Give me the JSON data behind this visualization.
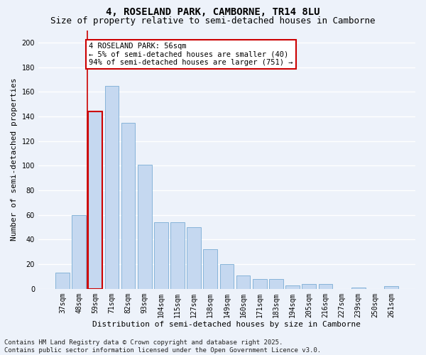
{
  "title1": "4, ROSELAND PARK, CAMBORNE, TR14 8LU",
  "title2": "Size of property relative to semi-detached houses in Camborne",
  "xlabel": "Distribution of semi-detached houses by size in Camborne",
  "ylabel": "Number of semi-detached properties",
  "categories": [
    "37sqm",
    "48sqm",
    "59sqm",
    "71sqm",
    "82sqm",
    "93sqm",
    "104sqm",
    "115sqm",
    "127sqm",
    "138sqm",
    "149sqm",
    "160sqm",
    "171sqm",
    "183sqm",
    "194sqm",
    "205sqm",
    "216sqm",
    "227sqm",
    "239sqm",
    "250sqm",
    "261sqm"
  ],
  "values": [
    13,
    60,
    144,
    165,
    135,
    101,
    54,
    54,
    50,
    32,
    20,
    11,
    8,
    8,
    3,
    4,
    4,
    0,
    1,
    0,
    2
  ],
  "bar_color": "#c5d8f0",
  "bar_edge_color": "#7aadd4",
  "highlight_bar_index": 2,
  "highlight_bar_edge_color": "#cc0000",
  "annotation_text": "4 ROSELAND PARK: 56sqm\n← 5% of semi-detached houses are smaller (40)\n94% of semi-detached houses are larger (751) →",
  "annotation_box_color": "#ffffff",
  "annotation_box_edge_color": "#cc0000",
  "ylim": [
    0,
    210
  ],
  "yticks": [
    0,
    20,
    40,
    60,
    80,
    100,
    120,
    140,
    160,
    180,
    200
  ],
  "footer": "Contains HM Land Registry data © Crown copyright and database right 2025.\nContains public sector information licensed under the Open Government Licence v3.0.",
  "bg_color": "#edf2fa",
  "plot_bg_color": "#edf2fa",
  "grid_color": "#ffffff",
  "title1_fontsize": 10,
  "title2_fontsize": 9,
  "axis_label_fontsize": 8,
  "tick_fontsize": 7,
  "footer_fontsize": 6.5,
  "annotation_fontsize": 7.5
}
